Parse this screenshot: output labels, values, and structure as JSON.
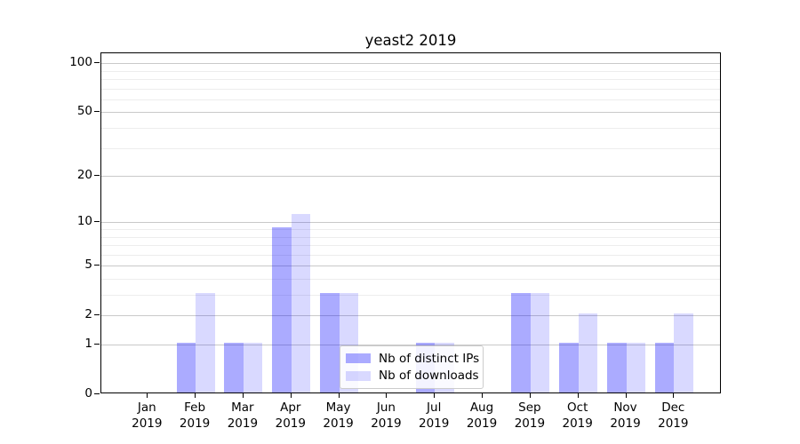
{
  "chart_data": {
    "type": "bar",
    "title": "yeast2 2019",
    "categories": [
      "Jan",
      "Feb",
      "Mar",
      "Apr",
      "May",
      "Jun",
      "Jul",
      "Aug",
      "Sep",
      "Oct",
      "Nov",
      "Dec"
    ],
    "year_label": "2019",
    "series": [
      {
        "name": "Nb of distinct IPs",
        "color": "rgba(0,0,255,0.33)",
        "values": [
          0,
          1,
          1,
          9,
          3,
          0,
          1,
          0,
          3,
          1,
          1,
          1
        ]
      },
      {
        "name": "Nb of downloads",
        "color": "rgba(0,0,255,0.15)",
        "values": [
          0,
          3,
          1,
          11,
          3,
          0,
          1,
          0,
          3,
          2,
          1,
          2
        ]
      }
    ],
    "y_axis": {
      "scale": "log1p",
      "ticks": [
        0,
        1,
        2,
        5,
        10,
        20,
        50,
        100
      ],
      "minor_ticks": [
        3,
        4,
        6,
        7,
        8,
        9,
        30,
        40,
        60,
        70,
        80,
        90
      ],
      "max": 115
    },
    "xlabel": "",
    "ylabel": "",
    "grid": true,
    "legend_position": "lower center",
    "colors": {
      "bar_distinct_ips": "rgba(0,0,255,0.33)",
      "bar_downloads": "rgba(0,0,255,0.15)",
      "gridline_major": "#c9c9c9",
      "gridline_minor": "#ededed",
      "spine": "#000000"
    }
  }
}
